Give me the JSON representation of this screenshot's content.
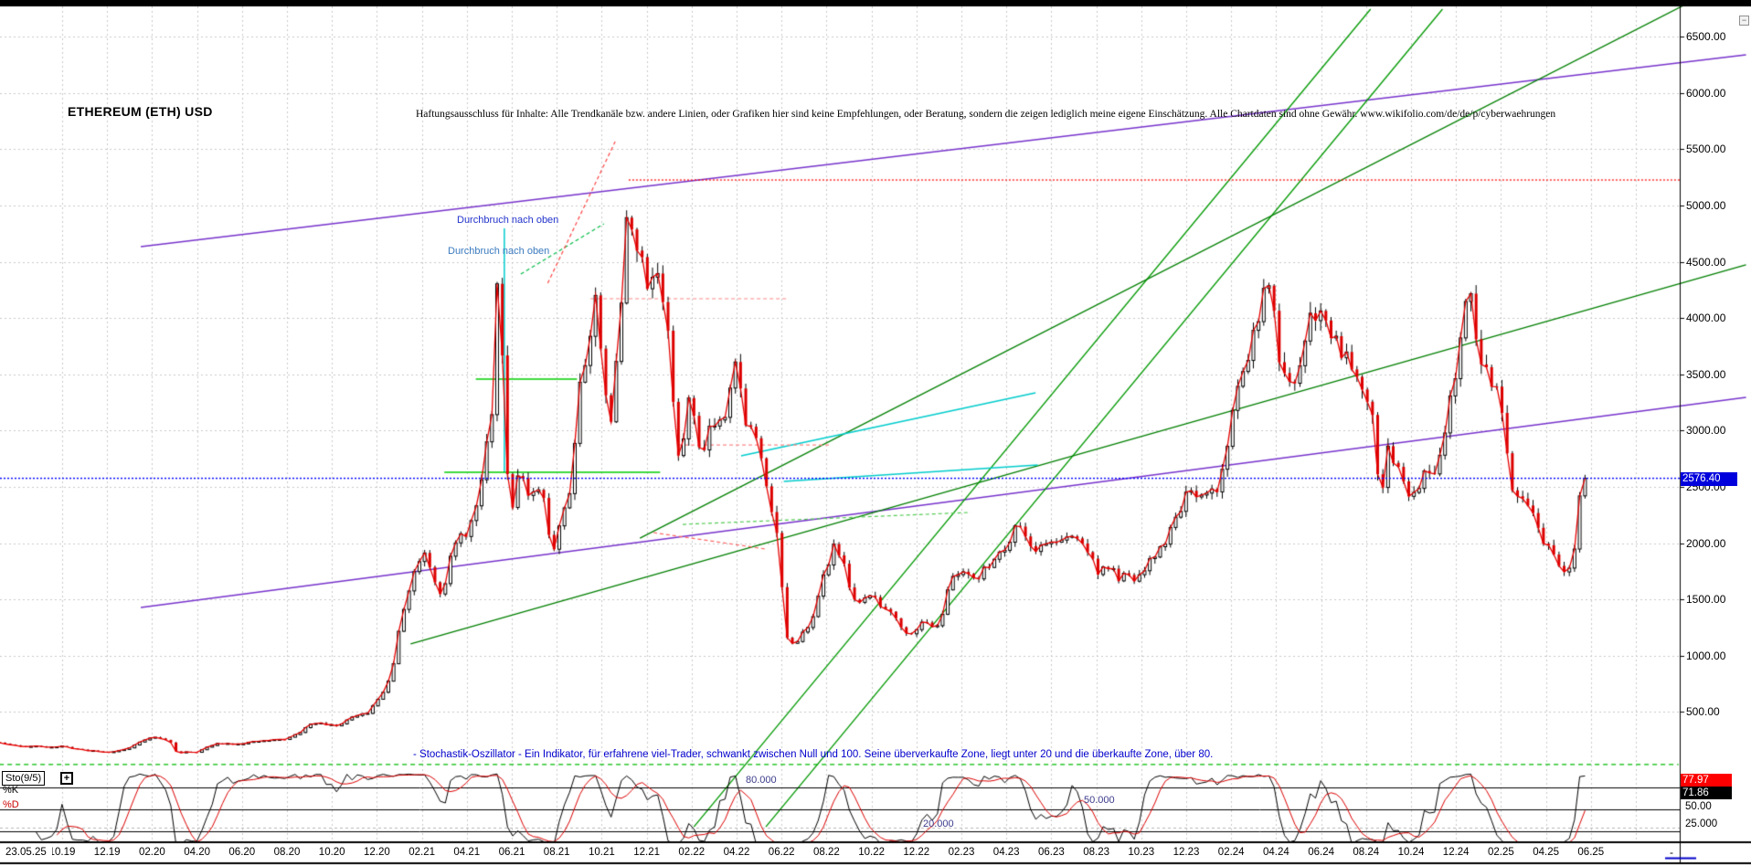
{
  "window": {
    "minimize_label": "−"
  },
  "header": {
    "title": "ETHEREUM (ETH) USD",
    "disclaimer": "Haftungsausschluss für Inhalte: Alle Trendkanäle bzw. andere Linien, oder Grafiken hier sind keine Empfehlungen, oder Beratung, sondern die zeigen lediglich meine eigene Einschätzung. Alle Chartdaten sind ohne Gewähr.  www.wikifolio.com/de/de/p/cyberwaehrungen"
  },
  "annotations": {
    "breakout_1": "Durchbruch nach oben",
    "breakout_2": "Durchbruch nach oben",
    "stochastic_note": "- Stochastik-Oszillator - Ein Indikator, für erfahrene viel-Trader, schwankt zwischen Null und 100. Seine überverkaufte Zone, liegt unter 20 und die überkaufte Zone, über 80."
  },
  "price_axis": {
    "tick_labels": [
      "6500.00",
      "6000.00",
      "5500.00",
      "5000.00",
      "4500.00",
      "4000.00",
      "3500.00",
      "3000.00",
      "2500.00",
      "2000.00",
      "1500.00",
      "1000.00",
      "500.00"
    ],
    "tick_values": [
      6500,
      6000,
      5500,
      5000,
      4500,
      4000,
      3500,
      3000,
      2500,
      2000,
      1500,
      1000,
      500
    ],
    "current_price_label": "2576.40"
  },
  "date_axis": {
    "current_date_label": "23.05.25",
    "tick_labels": [
      "10.19",
      "12.19",
      "02.20",
      "04.20",
      "06.20",
      "08.20",
      "10.20",
      "12.20",
      "02.21",
      "04.21",
      "06.21",
      "08.21",
      "10.21",
      "12.21",
      "02.22",
      "04.22",
      "06.22",
      "08.22",
      "10.22",
      "12.22",
      "02.23",
      "04.23",
      "06.23",
      "08.23",
      "10.23",
      "12.23",
      "02.24",
      "04.24",
      "06.24",
      "08.24",
      "10.24",
      "12.24",
      "02.25",
      "04.25",
      "06.25"
    ],
    "end_marker": "-"
  },
  "indicator": {
    "name": "Sto(9/5)",
    "expand_label": "+",
    "k_label": "%K",
    "d_label": "%D",
    "k_value_label": "77.97",
    "d_value_label": "71.86",
    "axis_label_50": "50.00",
    "axis_label_25": "25.000",
    "level_80_label": "80.000",
    "level_50_label": "50.000",
    "level_20_label": "20.000"
  },
  "colors": {
    "up_candle": "#ffffff",
    "down_candle": "#dd0000",
    "candle_outline": "#000000",
    "close_line": "#e60000",
    "current_price_line": "#0000ff",
    "current_price_box": "#0000dd",
    "ath_line": "#ff0000",
    "grid": "#c9c9c9",
    "k_line": "#000000",
    "d_line": "#dd0000",
    "violet": "#7733cc",
    "green": "#009900",
    "cyan": "#00cccc"
  },
  "chart_data": {
    "type": "candlestick",
    "symbol": "ETHEREUM (ETH) USD",
    "interval": "weekly",
    "x_unit": "months since 2019-10",
    "x_range_months": [
      -3,
      72
    ],
    "y_range": [
      0,
      6800
    ],
    "grid": true,
    "price_gridlines": [
      500,
      1000,
      1500,
      2000,
      2500,
      3000,
      3500,
      4000,
      4500,
      5000,
      5500,
      6000,
      6500
    ],
    "current_price": 2576.4,
    "ath_level": 5227,
    "ath_start_m": 25.2,
    "anchors_close": [
      [
        -3.0,
        230
      ],
      [
        -2.5,
        215
      ],
      [
        -2.0,
        200
      ],
      [
        -1.5,
        192
      ],
      [
        -1.0,
        196
      ],
      [
        -0.5,
        190
      ],
      [
        0,
        193
      ],
      [
        0.5,
        178
      ],
      [
        1,
        161
      ],
      [
        1.5,
        152
      ],
      [
        2,
        141
      ],
      [
        2.5,
        155
      ],
      [
        3,
        180
      ],
      [
        3.5,
        238
      ],
      [
        4,
        282
      ],
      [
        4.4,
        262
      ],
      [
        4.8,
        240
      ],
      [
        5.1,
        137
      ],
      [
        5.5,
        142
      ],
      [
        6,
        145
      ],
      [
        6.5,
        190
      ],
      [
        7,
        222
      ],
      [
        7.5,
        218
      ],
      [
        8,
        220
      ],
      [
        8.5,
        232
      ],
      [
        9,
        245
      ],
      [
        9.5,
        252
      ],
      [
        10,
        260
      ],
      [
        10.5,
        310
      ],
      [
        11,
        380
      ],
      [
        11.4,
        415
      ],
      [
        11.8,
        392
      ],
      [
        12.2,
        372
      ],
      [
        12.7,
        430
      ],
      [
        13.2,
        465
      ],
      [
        13.7,
        505
      ],
      [
        14.1,
        630
      ],
      [
        14.6,
        785
      ],
      [
        15.1,
        1340
      ],
      [
        15.6,
        1710
      ],
      [
        16.1,
        1950
      ],
      [
        16.5,
        1720
      ],
      [
        16.9,
        1550
      ],
      [
        17.4,
        1960
      ],
      [
        17.9,
        2080
      ],
      [
        18.4,
        2250
      ],
      [
        18.8,
        2760
      ],
      [
        19.1,
        3100
      ],
      [
        19.4,
        4500
      ],
      [
        19.6,
        3650
      ],
      [
        19.9,
        2180
      ],
      [
        20.3,
        2700
      ],
      [
        20.8,
        2350
      ],
      [
        21.3,
        2500
      ],
      [
        21.8,
        1905
      ],
      [
        22.2,
        2250
      ],
      [
        22.6,
        2460
      ],
      [
        23.0,
        3420
      ],
      [
        23.4,
        3700
      ],
      [
        23.7,
        4210
      ],
      [
        24.0,
        3620
      ],
      [
        24.4,
        3100
      ],
      [
        24.7,
        3650
      ],
      [
        25.2,
        5080
      ],
      [
        25.6,
        4560
      ],
      [
        26.0,
        4340
      ],
      [
        26.5,
        4420
      ],
      [
        26.9,
        3990
      ],
      [
        27.4,
        2700
      ],
      [
        27.9,
        3300
      ],
      [
        28.4,
        2800
      ],
      [
        28.9,
        3100
      ],
      [
        29.4,
        3080
      ],
      [
        29.9,
        3670
      ],
      [
        30.4,
        3100
      ],
      [
        30.9,
        2900
      ],
      [
        31.4,
        2480
      ],
      [
        31.8,
        2100
      ],
      [
        32.2,
        1180
      ],
      [
        32.6,
        1060
      ],
      [
        33.0,
        1210
      ],
      [
        33.5,
        1420
      ],
      [
        34.0,
        1780
      ],
      [
        34.4,
        2040
      ],
      [
        34.9,
        1700
      ],
      [
        35.4,
        1420
      ],
      [
        35.9,
        1560
      ],
      [
        36.4,
        1440
      ],
      [
        36.9,
        1400
      ],
      [
        37.2,
        1330
      ],
      [
        37.5,
        1180
      ],
      [
        38.0,
        1260
      ],
      [
        38.5,
        1290
      ],
      [
        39.0,
        1280
      ],
      [
        39.6,
        1700
      ],
      [
        40.2,
        1770
      ],
      [
        40.8,
        1680
      ],
      [
        41.4,
        1870
      ],
      [
        42.0,
        1960
      ],
      [
        42.5,
        2240
      ],
      [
        43.0,
        1980
      ],
      [
        43.5,
        1950
      ],
      [
        44.0,
        2030
      ],
      [
        44.5,
        2010
      ],
      [
        45.0,
        2060
      ],
      [
        45.5,
        1990
      ],
      [
        46.0,
        1760
      ],
      [
        46.5,
        1780
      ],
      [
        47.0,
        1700
      ],
      [
        47.5,
        1680
      ],
      [
        48.0,
        1700
      ],
      [
        48.5,
        1860
      ],
      [
        49.0,
        2000
      ],
      [
        49.5,
        2200
      ],
      [
        50.0,
        2450
      ],
      [
        50.5,
        2350
      ],
      [
        51.0,
        2440
      ],
      [
        51.5,
        2510
      ],
      [
        52.0,
        3100
      ],
      [
        52.6,
        3620
      ],
      [
        53.1,
        3900
      ],
      [
        53.7,
        4350
      ],
      [
        54.1,
        3720
      ],
      [
        54.4,
        3400
      ],
      [
        54.9,
        3350
      ],
      [
        55.4,
        4000
      ],
      [
        55.9,
        4080
      ],
      [
        56.4,
        3900
      ],
      [
        56.9,
        3740
      ],
      [
        57.4,
        3610
      ],
      [
        57.9,
        3390
      ],
      [
        58.3,
        3190
      ],
      [
        58.65,
        2320
      ],
      [
        59.0,
        2860
      ],
      [
        59.4,
        2650
      ],
      [
        59.8,
        2460
      ],
      [
        60.2,
        2510
      ],
      [
        60.7,
        2610
      ],
      [
        61.2,
        2700
      ],
      [
        61.7,
        3270
      ],
      [
        62.1,
        3590
      ],
      [
        62.6,
        4280
      ],
      [
        63.0,
        3620
      ],
      [
        63.4,
        3560
      ],
      [
        63.9,
        3310
      ],
      [
        64.2,
        2940
      ],
      [
        64.5,
        2420
      ],
      [
        64.9,
        2370
      ],
      [
        65.3,
        2270
      ],
      [
        65.9,
        2010
      ],
      [
        66.4,
        1915
      ],
      [
        66.9,
        1690
      ],
      [
        67.2,
        1800
      ],
      [
        67.4,
        2100
      ],
      [
        67.55,
        2580
      ],
      [
        67.65,
        2720
      ],
      [
        67.74,
        2576.4
      ]
    ],
    "trendlines": [
      {
        "name": "violet-channel-upper",
        "color": "#7733cc",
        "w": 1.5,
        "dash": [],
        "m1": 3.5,
        "p1": 4635,
        "m2": 74.9,
        "p2": 6340
      },
      {
        "name": "violet-channel-lower",
        "color": "#7733cc",
        "w": 1.5,
        "dash": [],
        "m1": 3.5,
        "p1": 1428,
        "m2": 74.9,
        "p2": 3295
      },
      {
        "name": "green-steep-1",
        "color": "#009900",
        "w": 1.3,
        "dash": [],
        "m1": 28.1,
        "p1": -520,
        "m2": 58.2,
        "p2": 6745
      },
      {
        "name": "green-steep-2",
        "color": "#009900",
        "w": 1.3,
        "dash": [],
        "m1": 31.3,
        "p1": -520,
        "m2": 61.4,
        "p2": 6745
      },
      {
        "name": "green-medium",
        "color": "#007f00",
        "w": 1.3,
        "dash": [],
        "m1": 25.7,
        "p1": 2045,
        "m2": 72.6,
        "p2": 6827
      },
      {
        "name": "green-shallow",
        "color": "#007f00",
        "w": 1.3,
        "dash": [],
        "m1": 15.5,
        "p1": 1104,
        "m2": 74.9,
        "p2": 4473
      },
      {
        "name": "cyan-vertical",
        "color": "#00cccc",
        "w": 1.5,
        "dash": [],
        "m1": 19.67,
        "p1": 4797,
        "m2": 19.67,
        "p2": 2630
      },
      {
        "name": "cyan-diag-upper",
        "color": "#00cccc",
        "w": 1.5,
        "dash": [],
        "m1": 30.2,
        "p1": 2776,
        "m2": 43.3,
        "p2": 3336
      },
      {
        "name": "cyan-diag-lower",
        "color": "#00cccc",
        "w": 1.5,
        "dash": [],
        "m1": 32.1,
        "p1": 2549,
        "m2": 43.4,
        "p2": 2695
      },
      {
        "name": "green-support-high",
        "color": "#00cc00",
        "w": 1.5,
        "dash": [],
        "m1": 18.4,
        "p1": 3458,
        "m2": 22.9,
        "p2": 3458
      },
      {
        "name": "green-support-low",
        "color": "#00cc00",
        "w": 1.5,
        "dash": [],
        "m1": 17.0,
        "p1": 2630,
        "m2": 26.6,
        "p2": 2630
      },
      {
        "name": "green-dash-peak",
        "color": "#00bb44",
        "w": 1.2,
        "dash": [
          4,
          3
        ],
        "m1": 20.4,
        "p1": 4391,
        "m2": 24.1,
        "p2": 4838
      },
      {
        "name": "green-dash-low",
        "color": "#55cc55",
        "w": 1.2,
        "dash": [
          4,
          3
        ],
        "m1": 27.6,
        "p1": 2167,
        "m2": 40.4,
        "p2": 2273
      },
      {
        "name": "red-dash-peak",
        "color": "#ff4444",
        "w": 1.2,
        "dash": [
          4,
          3
        ],
        "m1": 21.6,
        "p1": 4310,
        "m2": 24.6,
        "p2": 5568
      },
      {
        "name": "salmon-dash-resistance",
        "color": "#ff8888",
        "w": 1.2,
        "dash": [
          4,
          3
        ],
        "m1": 23.5,
        "p1": 4172,
        "m2": 32.3,
        "p2": 4172
      },
      {
        "name": "pink-dash-resistance",
        "color": "#ff8888",
        "w": 1.2,
        "dash": [
          4,
          3
        ],
        "m1": 27.4,
        "p1": 2873,
        "m2": 34.2,
        "p2": 2873
      },
      {
        "name": "red-dash-short",
        "color": "#ff6666",
        "w": 1.2,
        "dash": [
          4,
          3
        ],
        "m1": 26.3,
        "p1": 2094,
        "m2": 31.3,
        "p2": 1948
      },
      {
        "name": "green-dash-zero",
        "color": "#00bb00",
        "w": 1.3,
        "dash": [
          5,
          4
        ],
        "m1": -2.8,
        "p1": 33,
        "m2": 71.9,
        "p2": 33
      }
    ],
    "stochastic": {
      "period": "9/5",
      "k": 77.97,
      "d": 71.86,
      "range": [
        0,
        100
      ],
      "levels_solid": [
        80,
        50,
        20
      ],
      "level_dashed": 25
    }
  }
}
